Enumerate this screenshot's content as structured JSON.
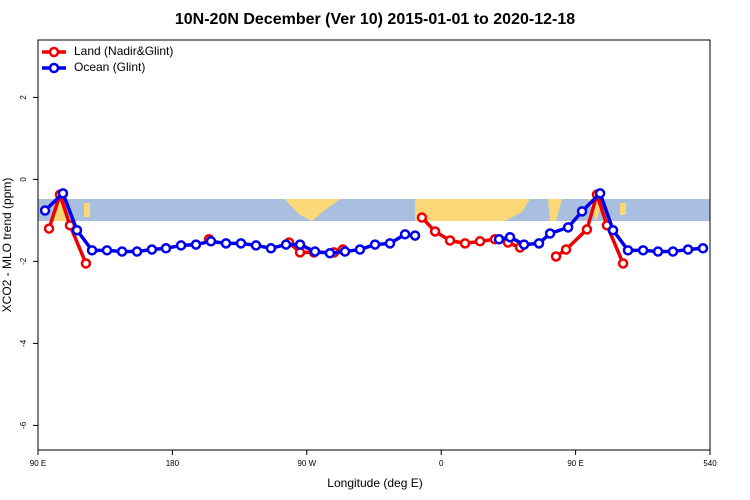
{
  "chart_data": {
    "type": "line",
    "title": "10N-20N December (Ver 10)   2015-01-01 to 2020-12-18",
    "x_label": "Longitude (deg E)",
    "y_label": "XCO2 - MLO trend (ppm)",
    "xlim": [
      90,
      540
    ],
    "xticks": [
      {
        "value": 90,
        "label": "90 E"
      },
      180,
      {
        "value": 270,
        "label": "90 W"
      },
      {
        "value": 360,
        "label": "0"
      },
      {
        "value": 450,
        "label": "90 E"
      },
      540
    ],
    "ylim": [
      -6.6,
      3.4
    ],
    "yticks": [
      2,
      0,
      -2,
      -4,
      -6
    ],
    "legend": "top-left",
    "series": [
      {
        "name": "Land (Nadir&Glint)",
        "color": "#ee0000",
        "x": [
          97.4,
          104.7,
          111.4,
          122.1,
          null,
          204.5,
          null,
          258.1,
          265.5,
          274.8,
          288.2,
          294.2,
          null,
          347.1,
          355.9,
          365.9,
          376.0,
          386.0,
          396.0,
          404.7,
          412.8,
          null,
          436.9,
          443.6,
          457.6,
          464.3,
          471.0,
          481.8
        ],
        "values": [
          -1.2,
          -0.37,
          -1.12,
          -2.05,
          null,
          -1.46,
          null,
          -1.54,
          -1.78,
          -1.78,
          -1.78,
          -1.71,
          null,
          -0.93,
          -1.27,
          -1.49,
          -1.56,
          -1.51,
          -1.46,
          -1.54,
          -1.66,
          null,
          -1.88,
          -1.71,
          -1.22,
          -0.37,
          -1.12,
          -2.05
        ]
      },
      {
        "name": "Ocean (Glint)",
        "color": "#0000ee",
        "x": [
          94.7,
          106.7,
          116.1,
          126.2,
          136.2,
          146.3,
          156.3,
          166.3,
          175.7,
          185.8,
          195.8,
          205.8,
          215.9,
          225.9,
          236.0,
          246.0,
          256.1,
          265.5,
          275.5,
          285.5,
          295.6,
          305.6,
          315.7,
          325.7,
          335.8,
          342.5,
          null,
          398.7,
          406.1,
          415.5,
          425.5,
          432.9,
          445.0,
          454.3,
          466.4,
          475.1,
          485.1,
          495.2,
          505.2,
          515.2,
          525.3,
          535.3
        ],
        "values": [
          -0.76,
          -0.34,
          -1.24,
          -1.73,
          -1.73,
          -1.76,
          -1.76,
          -1.71,
          -1.68,
          -1.61,
          -1.59,
          -1.51,
          -1.56,
          -1.56,
          -1.61,
          -1.68,
          -1.59,
          -1.59,
          -1.76,
          -1.8,
          -1.76,
          -1.71,
          -1.59,
          -1.56,
          -1.34,
          -1.37,
          null,
          -1.46,
          -1.41,
          -1.59,
          -1.56,
          -1.32,
          -1.17,
          -0.78,
          -0.34,
          -1.24,
          -1.73,
          -1.73,
          -1.76,
          -1.76,
          -1.71,
          -1.68
        ]
      }
    ]
  }
}
